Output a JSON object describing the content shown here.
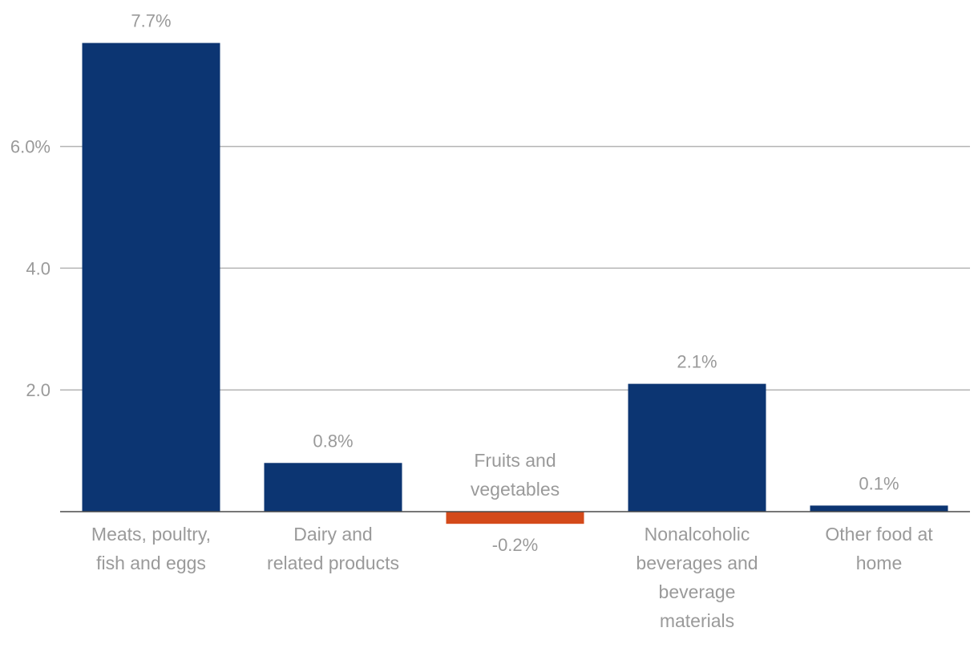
{
  "chart_data": {
    "type": "bar",
    "categories": [
      [
        "Meats, poultry,",
        "fish and eggs"
      ],
      [
        "Dairy and",
        "related products"
      ],
      [
        "Fruits and",
        "vegetables"
      ],
      [
        "Nonalcoholic",
        "beverages and",
        "beverage",
        "materials"
      ],
      [
        "Other food at",
        "home"
      ]
    ],
    "values": [
      7.7,
      0.8,
      -0.2,
      2.1,
      0.1
    ],
    "value_labels": [
      "7.7%",
      "0.8%",
      "-0.2%",
      "2.1%",
      "0.1%"
    ],
    "yticks": [
      2.0,
      4.0,
      6.0
    ],
    "ytick_labels": [
      "2.0",
      "4.0",
      "6.0%"
    ],
    "ylim": [
      -0.2,
      7.7
    ],
    "grid": true,
    "colors": {
      "positive": "#0c3572",
      "negative": "#d44a1a"
    }
  }
}
